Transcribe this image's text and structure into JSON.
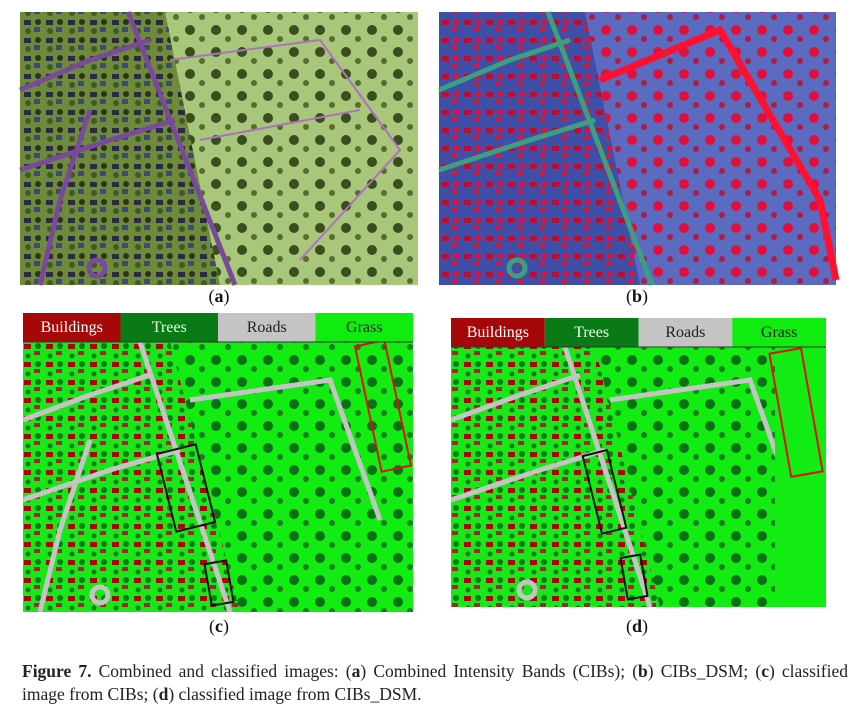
{
  "figure": {
    "panels": [
      {
        "label": [
          {
            "text": "(",
            "bold": false
          },
          {
            "text": "a",
            "bold": true
          },
          {
            "text": ")",
            "bold": false
          }
        ]
      },
      {
        "label": [
          {
            "text": "(",
            "bold": false
          },
          {
            "text": "b",
            "bold": true
          },
          {
            "text": ")",
            "bold": false
          }
        ]
      },
      {
        "label": [
          {
            "text": "(",
            "bold": false
          },
          {
            "text": "c",
            "bold": true
          },
          {
            "text": ")",
            "bold": false
          }
        ]
      },
      {
        "label": [
          {
            "text": "(",
            "bold": false
          },
          {
            "text": "d",
            "bold": true
          },
          {
            "text": ")",
            "bold": false
          }
        ]
      }
    ],
    "legend": [
      {
        "name": "Buildings",
        "color": "#a50808"
      },
      {
        "name": "Trees",
        "color": "#0a7a16"
      },
      {
        "name": "Roads",
        "color": "#c4c4c4"
      },
      {
        "name": "Grass",
        "color": "#10ec10"
      }
    ],
    "caption": [
      {
        "text": "Figure 7.",
        "bold": true
      },
      {
        "text": " Combined and classified images: (",
        "bold": false
      },
      {
        "text": "a",
        "bold": true
      },
      {
        "text": ") Combined Intensity Bands (CIBs); (",
        "bold": false
      },
      {
        "text": "b",
        "bold": true
      },
      {
        "text": ") CIBs_DSM; (",
        "bold": false
      },
      {
        "text": "c",
        "bold": true
      },
      {
        "text": ") classified image from CIBs; (",
        "bold": false
      },
      {
        "text": "d",
        "bold": true
      },
      {
        "text": ") classified image from CIBs_DSM.",
        "bold": false
      }
    ]
  }
}
